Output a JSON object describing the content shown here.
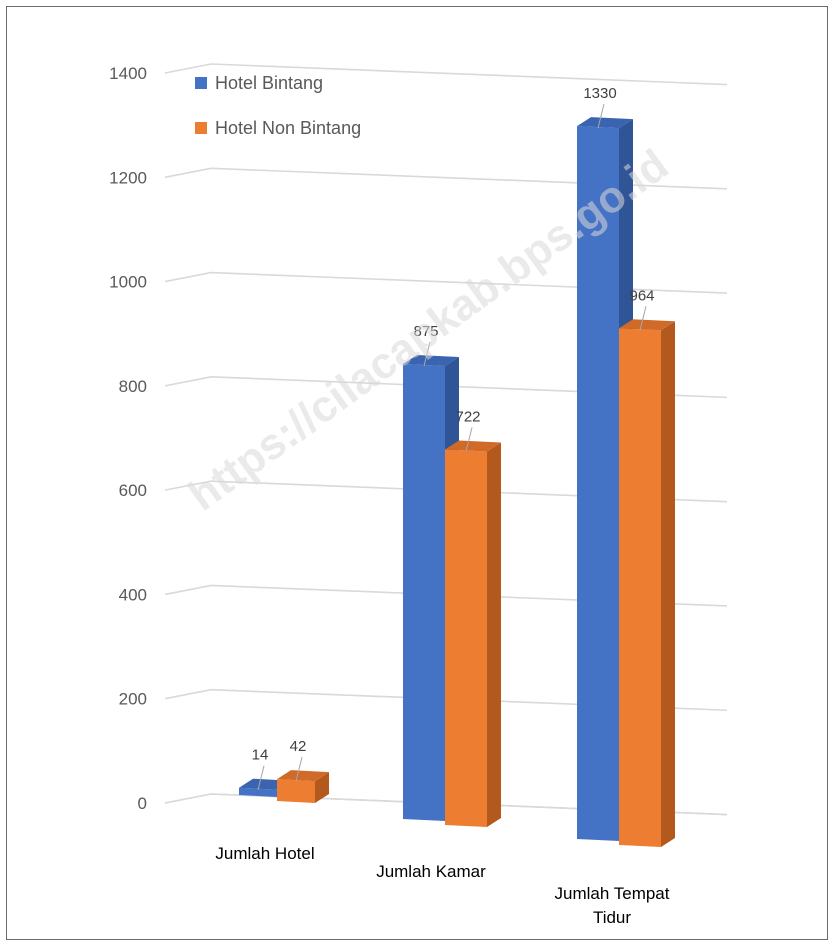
{
  "chart_data": {
    "type": "bar",
    "title": "",
    "xlabel": "",
    "ylabel": "",
    "categories": [
      "Jumlah Hotel",
      "Jumlah Kamar",
      "Jumlah Tempat Tidur"
    ],
    "category_lines": [
      [
        "Jumlah Hotel"
      ],
      [
        "Jumlah Kamar"
      ],
      [
        "Jumlah Tempat",
        "Tidur"
      ]
    ],
    "series": [
      {
        "name": "Hotel Bintang",
        "values": [
          14,
          875,
          1330
        ],
        "labels": [
          "14",
          "875",
          "1330"
        ],
        "color": "#4472c4",
        "side": "#2f5597",
        "top": "#3a64b0"
      },
      {
        "name": "Hotel Non Bintang",
        "values": [
          42,
          722,
          964
        ],
        "labels": [
          "42",
          "722",
          "964"
        ],
        "color": "#ed7d31",
        "side": "#b4591e",
        "top": "#d06a28"
      }
    ],
    "ylim": [
      0,
      1400
    ],
    "yticks": [
      0,
      200,
      400,
      600,
      800,
      1000,
      1200,
      1400
    ],
    "ytick_labels": [
      "0",
      "200",
      "400",
      "600",
      "800",
      "1000",
      "1200",
      "1400"
    ],
    "grid": true,
    "legend": "top-left",
    "style": "3d-clustered-column",
    "watermark": "https://cilacapkab.bps.go.id"
  }
}
